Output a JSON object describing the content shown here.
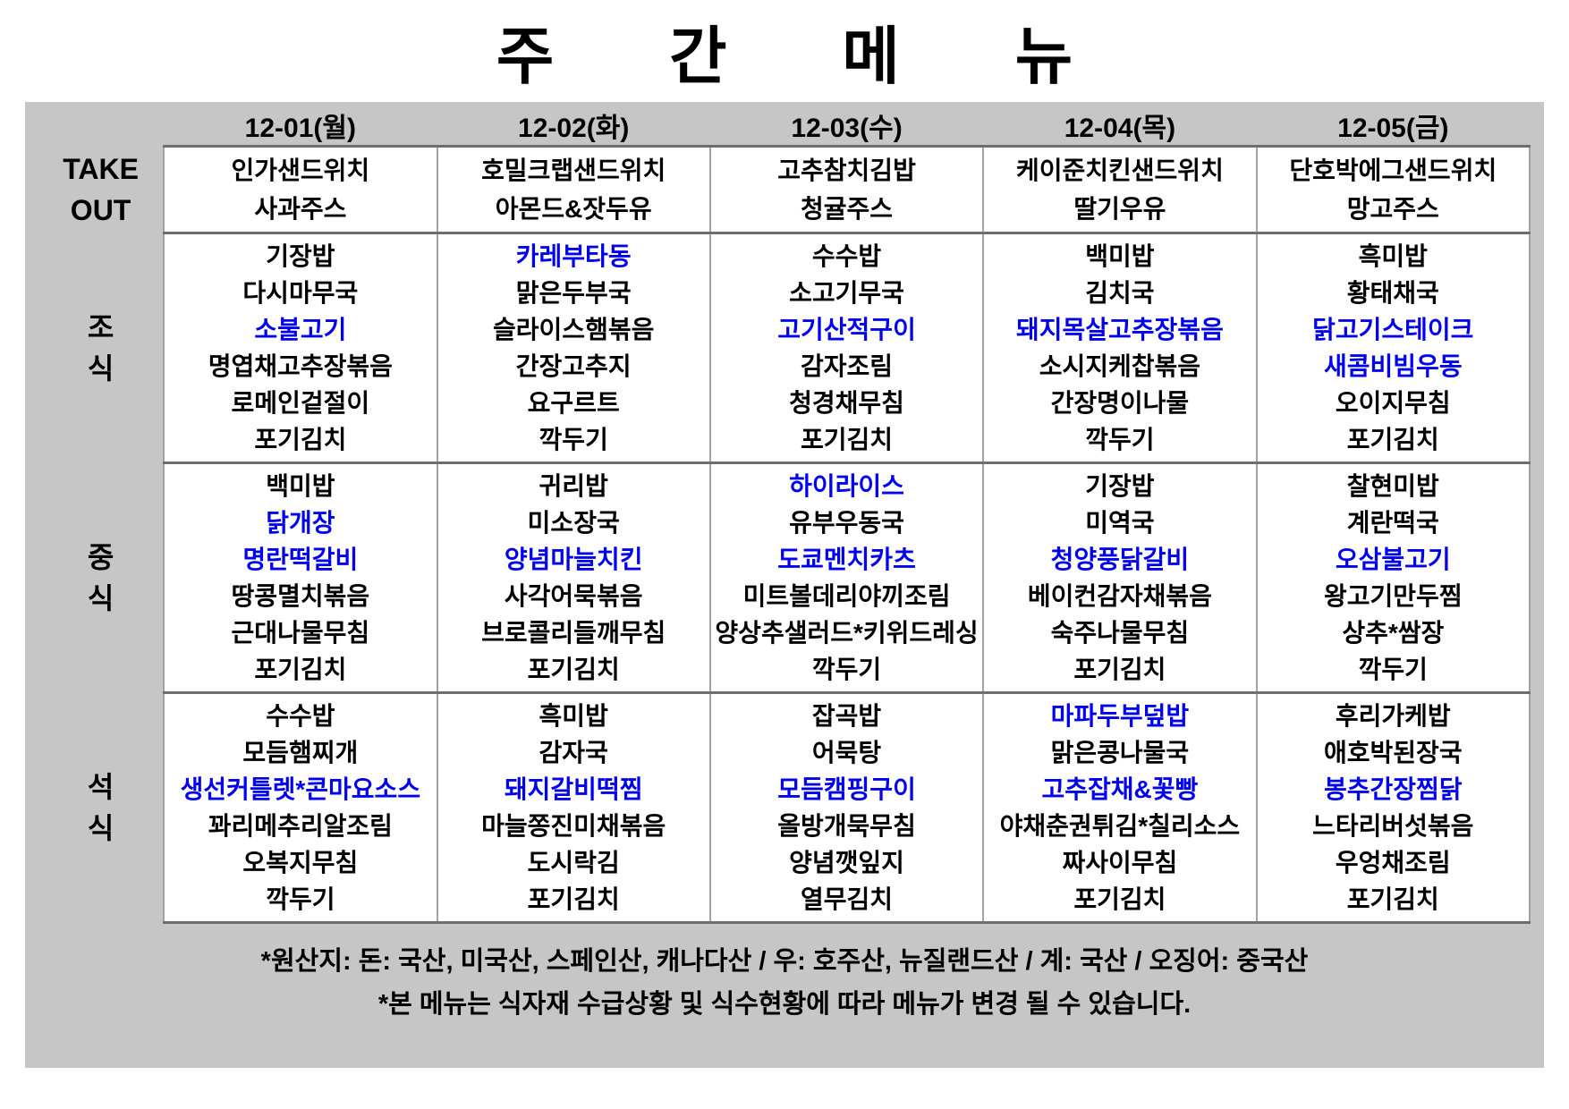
{
  "title": "주  간  메  뉴",
  "colors": {
    "highlight_blue": "#0000f0",
    "band_gray": "#c6c6c6"
  },
  "menu": {
    "days": [
      "12-01(월)",
      "12-02(화)",
      "12-03(수)",
      "12-04(목)",
      "12-05(금)"
    ],
    "sections": [
      {
        "id": "takeout",
        "label_lines": [
          "TAKE",
          "OUT"
        ],
        "cells": [
          [
            {
              "text": "인가샌드위치"
            },
            {
              "text": "사과주스"
            }
          ],
          [
            {
              "text": "호밀크랩샌드위치"
            },
            {
              "text": "아몬드&잣두유"
            }
          ],
          [
            {
              "text": "고추참치김밥"
            },
            {
              "text": "청귤주스"
            }
          ],
          [
            {
              "text": "케이준치킨샌드위치"
            },
            {
              "text": "딸기우유"
            }
          ],
          [
            {
              "text": "단호박에그샌드위치"
            },
            {
              "text": "망고주스"
            }
          ]
        ]
      },
      {
        "id": "breakfast",
        "label_lines": [
          "조",
          "식"
        ],
        "cells": [
          [
            {
              "text": "기장밥"
            },
            {
              "text": "다시마무국"
            },
            {
              "text": "소불고기",
              "blue": true
            },
            {
              "text": "명엽채고추장볶음"
            },
            {
              "text": "로메인겉절이"
            },
            {
              "text": "포기김치"
            }
          ],
          [
            {
              "text": "카레부타동",
              "blue": true
            },
            {
              "text": "맑은두부국"
            },
            {
              "text": "슬라이스햄볶음"
            },
            {
              "text": "간장고추지"
            },
            {
              "text": "요구르트"
            },
            {
              "text": "깍두기"
            }
          ],
          [
            {
              "text": "수수밥"
            },
            {
              "text": "소고기무국"
            },
            {
              "text": "고기산적구이",
              "blue": true
            },
            {
              "text": "감자조림"
            },
            {
              "text": "청경채무침"
            },
            {
              "text": "포기김치"
            }
          ],
          [
            {
              "text": "백미밥"
            },
            {
              "text": "김치국"
            },
            {
              "text": "돼지목살고추장볶음",
              "blue": true
            },
            {
              "text": "소시지케찹볶음"
            },
            {
              "text": "간장명이나물"
            },
            {
              "text": "깍두기"
            }
          ],
          [
            {
              "text": "흑미밥"
            },
            {
              "text": "황태채국"
            },
            {
              "text": "닭고기스테이크",
              "blue": true
            },
            {
              "text": "새콤비빔우동",
              "blue": true
            },
            {
              "text": "오이지무침"
            },
            {
              "text": "포기김치"
            }
          ]
        ]
      },
      {
        "id": "lunch",
        "label_lines": [
          "중",
          "식"
        ],
        "cells": [
          [
            {
              "text": "백미밥"
            },
            {
              "text": "닭개장",
              "blue": true
            },
            {
              "text": "명란떡갈비",
              "blue": true
            },
            {
              "text": "땅콩멸치볶음"
            },
            {
              "text": "근대나물무침"
            },
            {
              "text": "포기김치"
            }
          ],
          [
            {
              "text": "귀리밥"
            },
            {
              "text": "미소장국"
            },
            {
              "text": "양념마늘치킨",
              "blue": true
            },
            {
              "text": "사각어묵볶음"
            },
            {
              "text": "브로콜리들깨무침"
            },
            {
              "text": "포기김치"
            }
          ],
          [
            {
              "text": "하이라이스",
              "blue": true
            },
            {
              "text": "유부우동국"
            },
            {
              "text": "도쿄멘치카츠",
              "blue": true
            },
            {
              "text": "미트볼데리야끼조림"
            },
            {
              "text": "양상추샐러드*키위드레싱"
            },
            {
              "text": "깍두기"
            }
          ],
          [
            {
              "text": "기장밥"
            },
            {
              "text": "미역국"
            },
            {
              "text": "청양풍닭갈비",
              "blue": true
            },
            {
              "text": "베이컨감자채볶음"
            },
            {
              "text": "숙주나물무침"
            },
            {
              "text": "포기김치"
            }
          ],
          [
            {
              "text": "찰현미밥"
            },
            {
              "text": "계란떡국"
            },
            {
              "text": "오삼불고기",
              "blue": true
            },
            {
              "text": "왕고기만두찜"
            },
            {
              "text": "상추*쌈장"
            },
            {
              "text": "깍두기"
            }
          ]
        ]
      },
      {
        "id": "dinner",
        "label_lines": [
          "석",
          "식"
        ],
        "cells": [
          [
            {
              "text": "수수밥"
            },
            {
              "text": "모듬햄찌개"
            },
            {
              "text": "생선커틀렛*콘마요소스",
              "blue": true
            },
            {
              "text": "꽈리메추리알조림"
            },
            {
              "text": "오복지무침"
            },
            {
              "text": "깍두기"
            }
          ],
          [
            {
              "text": "흑미밥"
            },
            {
              "text": "감자국"
            },
            {
              "text": "돼지갈비떡찜",
              "blue": true
            },
            {
              "text": "마늘쫑진미채볶음"
            },
            {
              "text": "도시락김"
            },
            {
              "text": "포기김치"
            }
          ],
          [
            {
              "text": "잡곡밥"
            },
            {
              "text": "어묵탕"
            },
            {
              "text": "모듬캠핑구이",
              "blue": true
            },
            {
              "text": "올방개묵무침"
            },
            {
              "text": "양념깻잎지"
            },
            {
              "text": "열무김치"
            }
          ],
          [
            {
              "text": "마파두부덮밥",
              "blue": true
            },
            {
              "text": "맑은콩나물국"
            },
            {
              "text": "고추잡채&꽃빵",
              "blue": true
            },
            {
              "text": "야채춘권튀김*칠리소스"
            },
            {
              "text": "짜사이무침"
            },
            {
              "text": "포기김치"
            }
          ],
          [
            {
              "text": "후리가케밥"
            },
            {
              "text": "애호박된장국"
            },
            {
              "text": "봉추간장찜닭",
              "blue": true
            },
            {
              "text": "느타리버섯볶음"
            },
            {
              "text": "우엉채조림"
            },
            {
              "text": "포기김치"
            }
          ]
        ]
      }
    ]
  },
  "footer": {
    "line1": "*원산지: 돈: 국산, 미국산, 스페인산, 캐나다산 / 우: 호주산, 뉴질랜드산 / 계: 국산 / 오징어: 중국산",
    "line2": "*본 메뉴는 식자재 수급상황 및 식수현황에 따라 메뉴가 변경 될 수 있습니다."
  }
}
